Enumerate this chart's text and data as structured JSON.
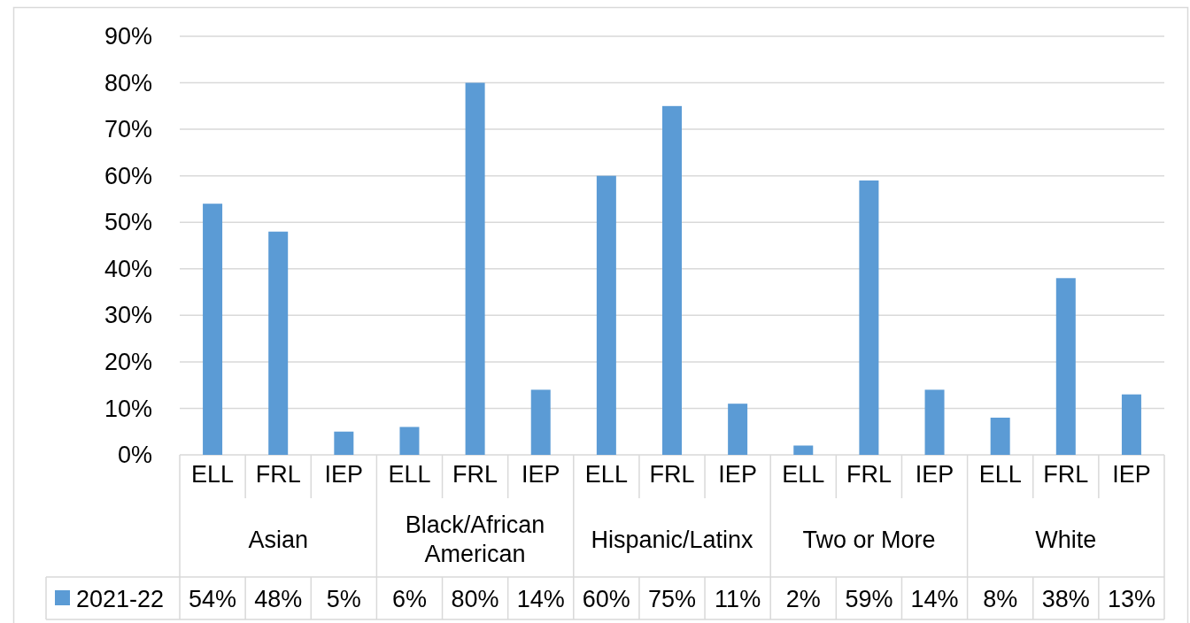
{
  "chart_data": {
    "type": "bar",
    "categories": [
      "ELL",
      "FRL",
      "IEP",
      "ELL",
      "FRL",
      "IEP",
      "ELL",
      "FRL",
      "IEP",
      "ELL",
      "FRL",
      "IEP",
      "ELL",
      "FRL",
      "IEP"
    ],
    "series": [
      {
        "name": "2021-22",
        "color": "#5b9bd5",
        "values": [
          54,
          48,
          5,
          6,
          80,
          14,
          60,
          75,
          11,
          2,
          59,
          14,
          8,
          38,
          13
        ],
        "value_labels": [
          "54%",
          "48%",
          "5%",
          "6%",
          "80%",
          "14%",
          "60%",
          "75%",
          "11%",
          "2%",
          "59%",
          "14%",
          "8%",
          "38%",
          "13%"
        ]
      }
    ],
    "annotations": [
      "Asian",
      "Black/African American",
      "Hispanic/Latinx",
      "Two or More",
      "White"
    ],
    "ylim": [
      0,
      90
    ],
    "yticks": [
      {
        "value": 0,
        "label": "0%"
      },
      {
        "value": 10,
        "label": "10%"
      },
      {
        "value": 20,
        "label": "20%"
      },
      {
        "value": 30,
        "label": "30%"
      },
      {
        "value": 40,
        "label": "40%"
      },
      {
        "value": 50,
        "label": "50%"
      },
      {
        "value": 60,
        "label": "60%"
      },
      {
        "value": 70,
        "label": "70%"
      },
      {
        "value": 80,
        "label": "80%"
      },
      {
        "value": 90,
        "label": "90%"
      }
    ],
    "grid": "y",
    "legend": "bottom"
  }
}
